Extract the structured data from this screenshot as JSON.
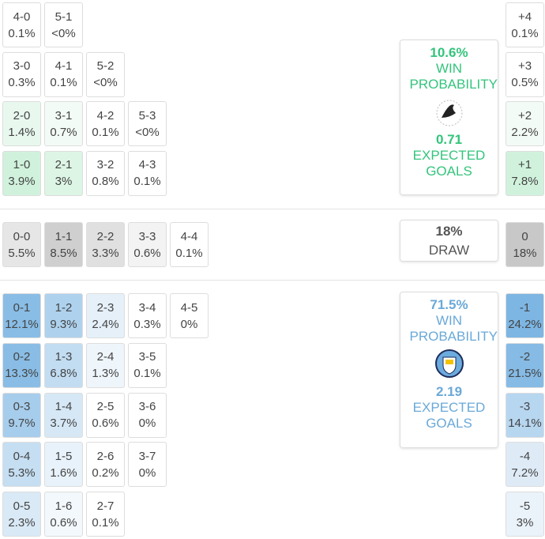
{
  "home_wins": {
    "rows": [
      [
        {
          "score": "4-0",
          "prob": "0.1%"
        },
        {
          "score": "5-1",
          "prob": "<0%"
        }
      ],
      [
        {
          "score": "3-0",
          "prob": "0.3%"
        },
        {
          "score": "4-1",
          "prob": "0.1%"
        },
        {
          "score": "5-2",
          "prob": "<0%"
        }
      ],
      [
        {
          "score": "2-0",
          "prob": "1.4%",
          "color": "#e8f8ee"
        },
        {
          "score": "3-1",
          "prob": "0.7%",
          "color": "#f3fbf6"
        },
        {
          "score": "4-2",
          "prob": "0.1%"
        },
        {
          "score": "5-3",
          "prob": "<0%"
        }
      ],
      [
        {
          "score": "1-0",
          "prob": "3.9%",
          "color": "#d0f2dc"
        },
        {
          "score": "2-1",
          "prob": "3%",
          "color": "#ddf5e5"
        },
        {
          "score": "3-2",
          "prob": "0.8%"
        },
        {
          "score": "4-3",
          "prob": "0.1%"
        }
      ]
    ]
  },
  "draws": {
    "rows": [
      [
        {
          "score": "0-0",
          "prob": "5.5%",
          "color": "#e6e6e6"
        },
        {
          "score": "1-1",
          "prob": "8.5%",
          "color": "#cfcfcf"
        },
        {
          "score": "2-2",
          "prob": "3.3%",
          "color": "#e0e0e0"
        },
        {
          "score": "3-3",
          "prob": "0.6%",
          "color": "#f3f3f3"
        },
        {
          "score": "4-4",
          "prob": "0.1%"
        }
      ]
    ]
  },
  "away_wins": {
    "rows": [
      [
        {
          "score": "0-1",
          "prob": "12.1%",
          "color": "#89bde6"
        },
        {
          "score": "1-2",
          "prob": "9.3%",
          "color": "#aed2ee"
        },
        {
          "score": "2-3",
          "prob": "2.4%",
          "color": "#e5f0f9"
        },
        {
          "score": "3-4",
          "prob": "0.3%"
        },
        {
          "score": "4-5",
          "prob": "0%"
        }
      ],
      [
        {
          "score": "0-2",
          "prob": "13.3%",
          "color": "#8abde5"
        },
        {
          "score": "1-3",
          "prob": "6.8%",
          "color": "#c2ddf2"
        },
        {
          "score": "2-4",
          "prob": "1.3%",
          "color": "#eef5fb"
        },
        {
          "score": "3-5",
          "prob": "0.1%"
        }
      ],
      [
        {
          "score": "0-3",
          "prob": "9.7%",
          "color": "#a7cdec"
        },
        {
          "score": "1-4",
          "prob": "3.7%",
          "color": "#d6e8f6"
        },
        {
          "score": "2-5",
          "prob": "0.6%"
        },
        {
          "score": "3-6",
          "prob": "0%"
        }
      ],
      [
        {
          "score": "0-4",
          "prob": "5.3%",
          "color": "#c5def2"
        },
        {
          "score": "1-5",
          "prob": "1.6%",
          "color": "#e8f2fa"
        },
        {
          "score": "2-6",
          "prob": "0.2%"
        },
        {
          "score": "3-7",
          "prob": "0%"
        }
      ],
      [
        {
          "score": "0-5",
          "prob": "2.3%",
          "color": "#d9e9f6"
        },
        {
          "score": "1-6",
          "prob": "0.6%",
          "color": "#f3f8fc"
        },
        {
          "score": "2-7",
          "prob": "0.1%"
        }
      ]
    ]
  },
  "margins": {
    "home": [
      {
        "score": "+4",
        "prob": "0.1%"
      },
      {
        "score": "+3",
        "prob": "0.5%"
      },
      {
        "score": "+2",
        "prob": "2.2%",
        "color": "#f3fbf6"
      },
      {
        "score": "+1",
        "prob": "7.8%",
        "color": "#d0f2dc"
      }
    ],
    "draw": [
      {
        "score": "0",
        "prob": "18%",
        "color": "#c8c8c8"
      }
    ],
    "away": [
      {
        "score": "-1",
        "prob": "24.2%",
        "color": "#7db6e3"
      },
      {
        "score": "-2",
        "prob": "21.5%",
        "color": "#86bbe5"
      },
      {
        "score": "-3",
        "prob": "14.1%",
        "color": "#b7d6f0"
      },
      {
        "score": "-4",
        "prob": "7.2%",
        "color": "#deebf7"
      },
      {
        "score": "-5",
        "prob": "3%",
        "color": "#eaf2fa"
      }
    ]
  },
  "summary": {
    "home": {
      "win_prob": "10.6%",
      "win_label": "WIN PROBABILITY",
      "xg": "0.71",
      "xg_label": "EXPECTED GOALS",
      "color": "#33c47c"
    },
    "draw": {
      "prob": "18%",
      "label": "DRAW"
    },
    "away": {
      "win_prob": "71.5%",
      "win_label": "WIN PROBABILITY",
      "xg": "2.19",
      "xg_label": "EXPECTED GOALS",
      "color": "#6aa9d8"
    }
  }
}
